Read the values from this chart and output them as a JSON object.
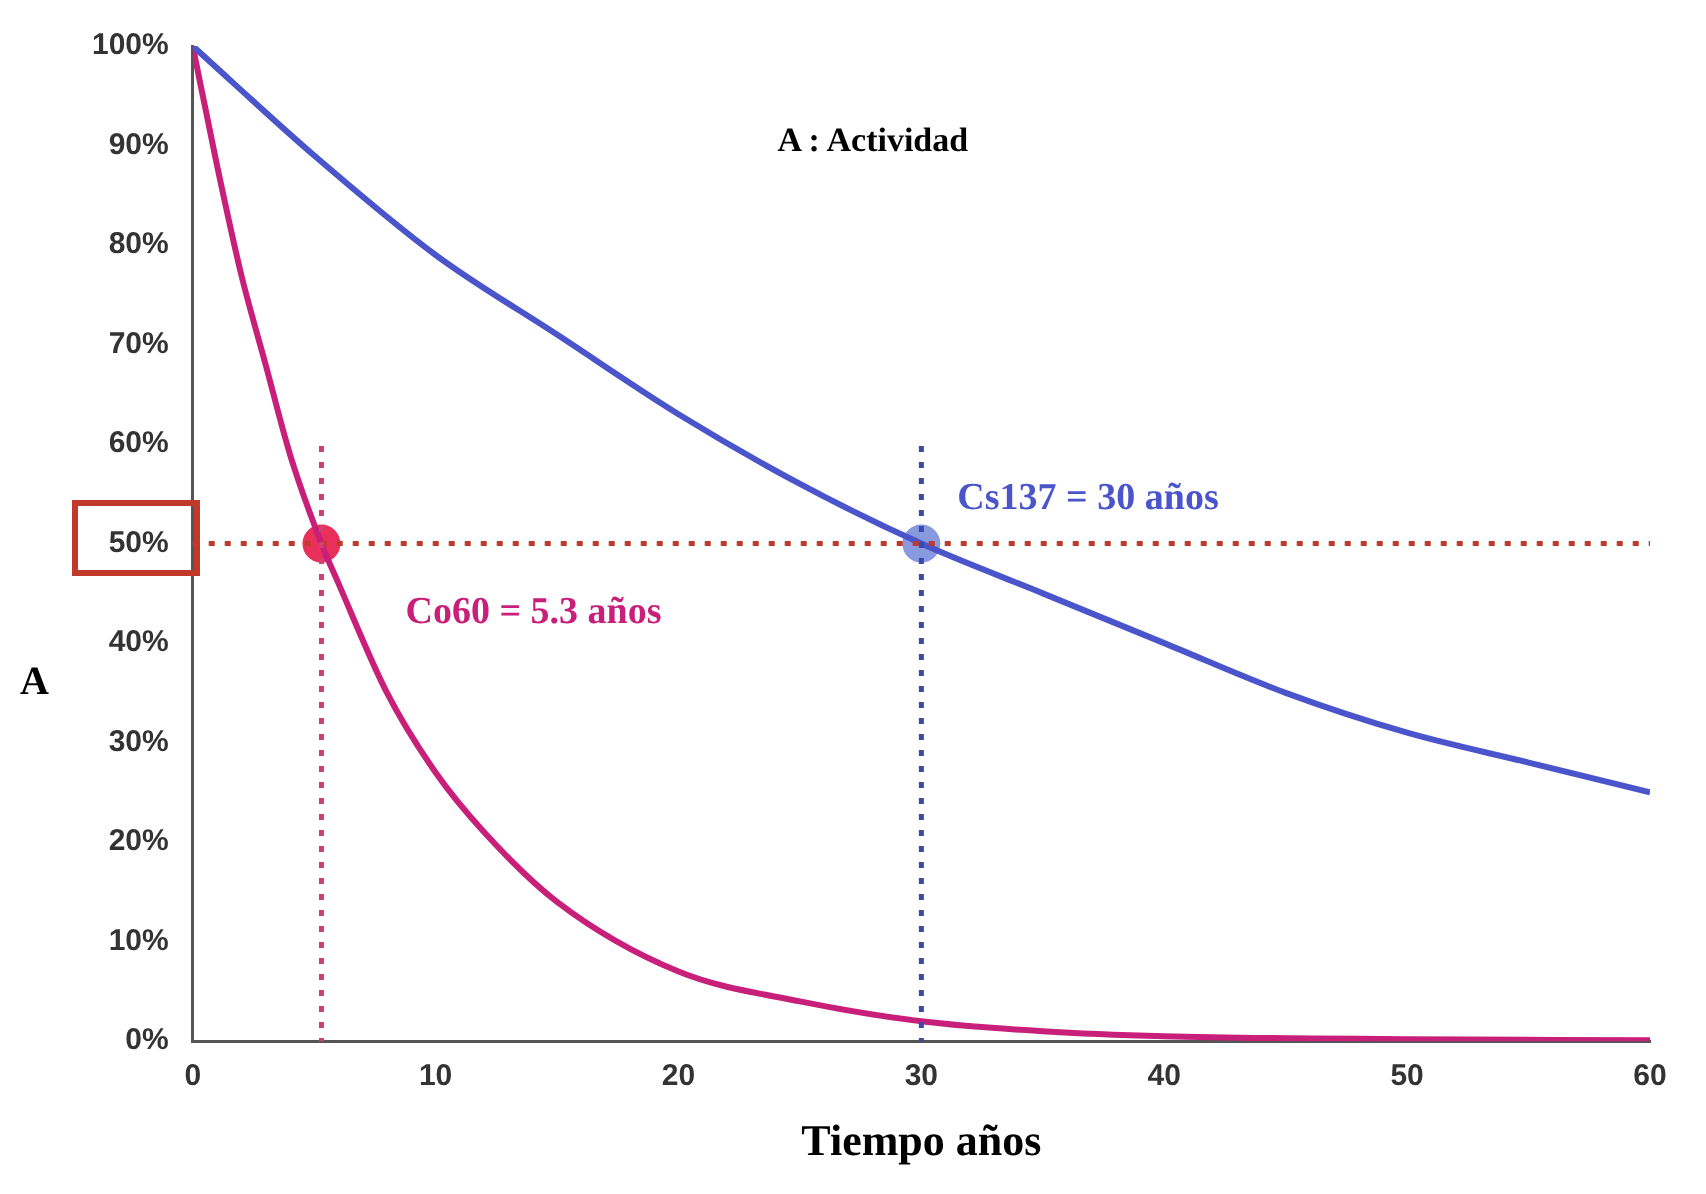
{
  "chart_data": {
    "type": "line",
    "title": "A : Actividad",
    "xlabel": "Tiempo años",
    "ylabel": "A",
    "series": [
      {
        "color": "#4a55cc",
        "x": [
          0,
          5,
          10,
          15,
          20,
          25,
          30,
          35,
          40,
          45,
          50,
          55,
          60
        ],
        "values": [
          100,
          89,
          79,
          71,
          63,
          56,
          50,
          45,
          40,
          35,
          31,
          28,
          25
        ]
      },
      {
        "color": "#c8207a",
        "x": [
          0,
          1,
          2,
          3,
          4,
          5.3,
          6,
          8,
          10,
          12,
          15,
          20,
          25,
          30,
          35,
          40,
          50,
          60
        ],
        "values": [
          100,
          88,
          77,
          68,
          59,
          50,
          46,
          35,
          27,
          21,
          14,
          7,
          4,
          2,
          1,
          0.5,
          0.2,
          0.1
        ]
      },
      {
        "type": "scatter",
        "marker": "circle",
        "x": [
          5.3,
          30
        ],
        "values": [
          50,
          50
        ],
        "colors": [
          "#e8305a",
          "#8899dd"
        ]
      }
    ],
    "xlim": [
      0,
      60
    ],
    "xticks": [
      0,
      10,
      20,
      30,
      40,
      50,
      60
    ],
    "ylim": [
      0,
      100
    ],
    "yticks": [
      {
        "value": 0,
        "label": "0%"
      },
      {
        "value": 10,
        "label": "10%"
      },
      {
        "value": 20,
        "label": "20%"
      },
      {
        "value": 30,
        "label": "30%"
      },
      {
        "value": 40,
        "label": "40%"
      },
      {
        "value": 50,
        "label": "50%"
      },
      {
        "value": 60,
        "label": "60%"
      },
      {
        "value": 70,
        "label": "70%"
      },
      {
        "value": 80,
        "label": "80%"
      },
      {
        "value": 90,
        "label": "90%"
      },
      {
        "value": 100,
        "label": "100%"
      }
    ],
    "ref_lines": [
      {
        "axis": "y",
        "value": 50,
        "color": "#c0392b",
        "line_style": "dotted"
      },
      {
        "axis": "x",
        "value": 5.3,
        "color": "#d04070",
        "line_style": "dotted"
      },
      {
        "axis": "x",
        "value": 30,
        "color": "#3a48b0",
        "line_style": "dotted"
      }
    ],
    "annotations": [
      {
        "text": "Cs137 = 30 años",
        "x": 30,
        "y": 50
      },
      {
        "text": "Co60 = 5.3 años",
        "x": 5.3,
        "y": 50
      }
    ],
    "grid": false,
    "legend": false,
    "marker": "none",
    "line_style": "solid"
  }
}
